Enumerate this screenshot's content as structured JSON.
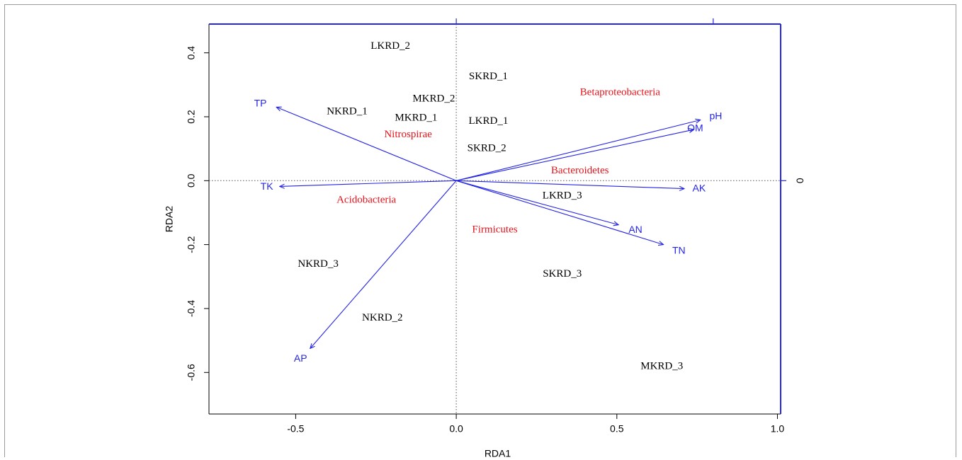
{
  "chart_data": {
    "type": "scatter",
    "xlabel": "RDA1",
    "ylabel": "RDA2",
    "xlim": [
      -0.77,
      1.01
    ],
    "ylim": [
      -0.73,
      0.49
    ],
    "x_ticks": [
      {
        "value": -0.5,
        "label": "-0.5"
      },
      {
        "value": 0.0,
        "label": "0.0"
      },
      {
        "value": 0.5,
        "label": "0.5"
      },
      {
        "value": 1.0,
        "label": "1.0"
      }
    ],
    "y_ticks": [
      {
        "value": 0.4,
        "label": "0.4"
      },
      {
        "value": 0.2,
        "label": "0.2"
      },
      {
        "value": 0.0,
        "label": "0.0"
      },
      {
        "value": -0.2,
        "label": "-0.2"
      },
      {
        "value": -0.4,
        "label": "-0.4"
      },
      {
        "value": -0.6,
        "label": "-0.6"
      }
    ],
    "right_axis_label": "0",
    "zero_lines": true,
    "sites": [
      {
        "label": "LKRD_2",
        "x": -0.205,
        "y": 0.42
      },
      {
        "label": "SKRD_1",
        "x": 0.1,
        "y": 0.325
      },
      {
        "label": "MKRD_2",
        "x": -0.07,
        "y": 0.255
      },
      {
        "label": "NKRD_1",
        "x": -0.34,
        "y": 0.215
      },
      {
        "label": "MKRD_1",
        "x": -0.125,
        "y": 0.195
      },
      {
        "label": "LKRD_1",
        "x": 0.1,
        "y": 0.185
      },
      {
        "label": "SKRD_2",
        "x": 0.095,
        "y": 0.1
      },
      {
        "label": "LKRD_3",
        "x": 0.33,
        "y": -0.048
      },
      {
        "label": "NKRD_3",
        "x": -0.43,
        "y": -0.262
      },
      {
        "label": "SKRD_3",
        "x": 0.33,
        "y": -0.293
      },
      {
        "label": "NKRD_2",
        "x": -0.23,
        "y": -0.43
      },
      {
        "label": "MKRD_3",
        "x": 0.64,
        "y": -0.582
      }
    ],
    "taxa": [
      {
        "label": "Betaproteobacteria",
        "x": 0.51,
        "y": 0.275
      },
      {
        "label": "Nitrospirae",
        "x": -0.15,
        "y": 0.143
      },
      {
        "label": "Bacteroidetes",
        "x": 0.385,
        "y": 0.03
      },
      {
        "label": "Acidobacteria",
        "x": -0.28,
        "y": -0.062
      },
      {
        "label": "Firmicutes",
        "x": 0.12,
        "y": -0.155
      }
    ],
    "env_vectors": [
      {
        "label": "TP",
        "x": -0.56,
        "y": 0.23,
        "label_x": -0.61,
        "label_y": 0.24
      },
      {
        "label": "TK",
        "x": -0.55,
        "y": -0.018,
        "label_x": -0.59,
        "label_y": -0.02
      },
      {
        "label": "AP",
        "x": -0.455,
        "y": -0.525,
        "label_x": -0.485,
        "label_y": -0.558
      },
      {
        "label": "pH",
        "x": 0.76,
        "y": 0.19,
        "label_x": 0.808,
        "label_y": 0.2
      },
      {
        "label": "OM",
        "x": 0.74,
        "y": 0.16,
        "label_x": 0.744,
        "label_y": 0.163
      },
      {
        "label": "AK",
        "x": 0.71,
        "y": -0.025,
        "label_x": 0.756,
        "label_y": -0.026
      },
      {
        "label": "AN",
        "x": 0.505,
        "y": -0.138,
        "label_x": 0.558,
        "label_y": -0.155
      },
      {
        "label": "TN",
        "x": 0.645,
        "y": -0.2,
        "label_x": 0.693,
        "label_y": -0.22
      }
    ],
    "colors": {
      "sites": "#000000",
      "taxa": "#e8141c",
      "env": "#2525e6",
      "frame": "#000000"
    }
  }
}
